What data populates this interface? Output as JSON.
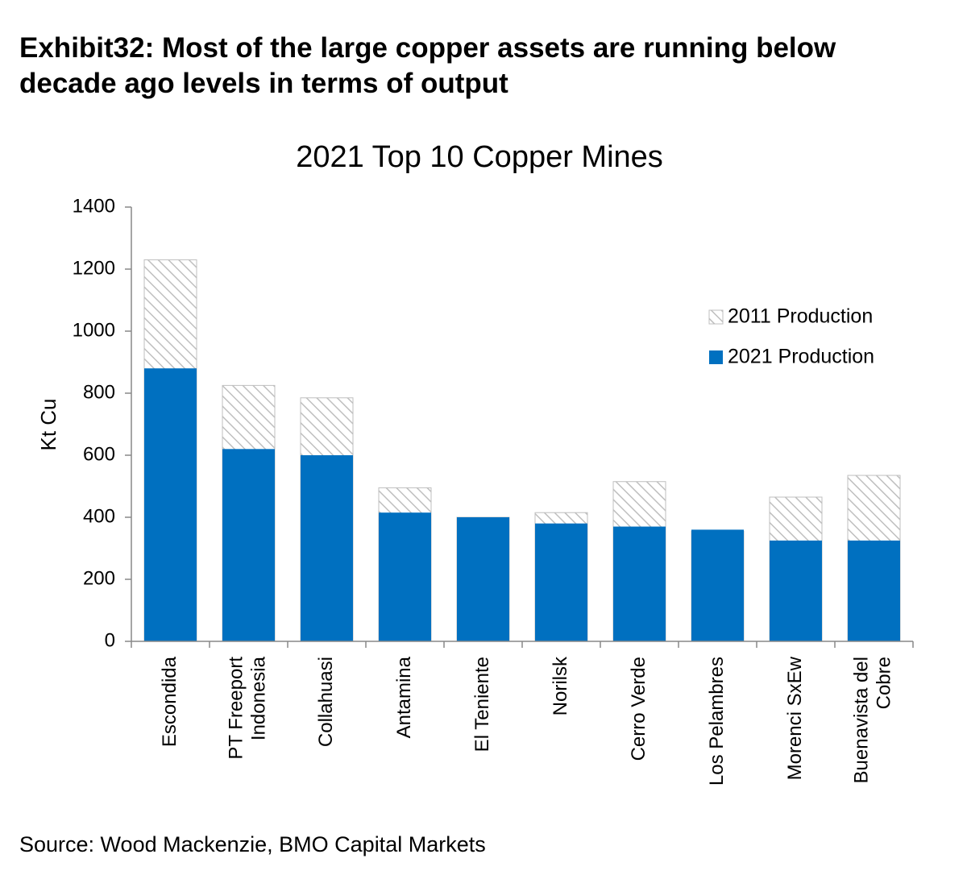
{
  "chart_data": {
    "type": "bar",
    "header": "Exhibit32: Most of the large copper assets are running below decade ago levels in terms of output",
    "title": "2021 Top 10 Copper Mines",
    "ylabel": "Kt Cu",
    "source": "Source: Wood Mackenzie, BMO Capital Markets",
    "categories": [
      "Escondida",
      "PT Freeport\nIndonesia",
      "Collahuasi",
      "Antamina",
      "El Teniente",
      "Norilsk",
      "Cerro Verde",
      "Los Pelambres",
      "Morenci SxEw",
      "Buenavista del\nCobre"
    ],
    "series": [
      {
        "name": "2011 Production",
        "color": "#bfbfbf",
        "pattern": "hatch",
        "values": [
          1230,
          825,
          785,
          495,
          400,
          415,
          515,
          355,
          465,
          535
        ]
      },
      {
        "name": "2021 Production",
        "color": "#0070c0",
        "values": [
          880,
          620,
          600,
          415,
          400,
          380,
          370,
          360,
          325,
          325
        ]
      }
    ],
    "overlap": true,
    "ylim": [
      0,
      1400
    ],
    "yticks": [
      0,
      200,
      400,
      600,
      800,
      1000,
      1200,
      1400
    ],
    "grid": false,
    "legend": "upper right"
  }
}
